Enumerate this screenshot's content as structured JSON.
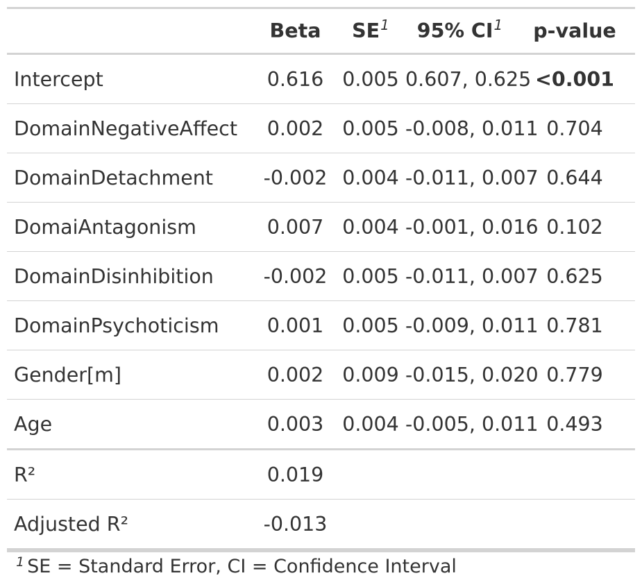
{
  "headers": {
    "stub": "",
    "beta": "Beta",
    "se": "SE",
    "se_note": "1",
    "ci": "95% CI",
    "ci_note": "1",
    "p": "p-value"
  },
  "rows": [
    {
      "label": "Intercept",
      "beta": "0.616",
      "se": "0.005",
      "ci": "0.607, 0.625",
      "p": "<0.001",
      "p_bold": true
    },
    {
      "label": "DomainNegativeAffect",
      "beta": "0.002",
      "se": "0.005",
      "ci": "-0.008, 0.011",
      "p": "0.704"
    },
    {
      "label": "DomainDetachment",
      "beta": "-0.002",
      "se": "0.004",
      "ci": "-0.011, 0.007",
      "p": "0.644"
    },
    {
      "label": "DomaiAntagonism",
      "beta": "0.007",
      "se": "0.004",
      "ci": "-0.001, 0.016",
      "p": "0.102"
    },
    {
      "label": "DomainDisinhibition",
      "beta": "-0.002",
      "se": "0.005",
      "ci": "-0.011, 0.007",
      "p": "0.625"
    },
    {
      "label": "DomainPsychoticism",
      "beta": "0.001",
      "se": "0.005",
      "ci": "-0.009, 0.011",
      "p": "0.781"
    },
    {
      "label": "Gender[m]",
      "beta": "0.002",
      "se": "0.009",
      "ci": "-0.015, 0.020",
      "p": "0.779"
    },
    {
      "label": "Age",
      "beta": "0.003",
      "se": "0.004",
      "ci": "-0.005, 0.011",
      "p": "0.493"
    }
  ],
  "glance": [
    {
      "label": "R²",
      "beta": "0.019"
    },
    {
      "label": "Adjusted R²",
      "beta": "-0.013"
    }
  ],
  "footnote": {
    "mark": "1",
    "text": "SE = Standard Error, CI = Confidence Interval"
  }
}
